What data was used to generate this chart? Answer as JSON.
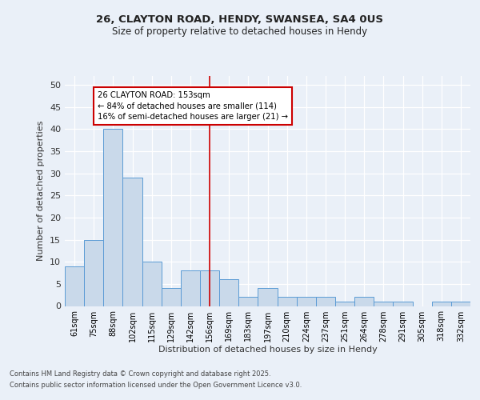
{
  "title1": "26, CLAYTON ROAD, HENDY, SWANSEA, SA4 0US",
  "title2": "Size of property relative to detached houses in Hendy",
  "xlabel": "Distribution of detached houses by size in Hendy",
  "ylabel": "Number of detached properties",
  "categories": [
    "61sqm",
    "75sqm",
    "88sqm",
    "102sqm",
    "115sqm",
    "129sqm",
    "142sqm",
    "156sqm",
    "169sqm",
    "183sqm",
    "197sqm",
    "210sqm",
    "224sqm",
    "237sqm",
    "251sqm",
    "264sqm",
    "278sqm",
    "291sqm",
    "305sqm",
    "318sqm",
    "332sqm"
  ],
  "values": [
    9,
    15,
    40,
    29,
    10,
    4,
    8,
    8,
    6,
    2,
    4,
    2,
    2,
    2,
    1,
    2,
    1,
    1,
    0,
    1,
    1
  ],
  "bar_color": "#c9d9ea",
  "bar_edge_color": "#5b9bd5",
  "vline_color": "#cc0000",
  "vline_x": 7.0,
  "annotation_title": "26 CLAYTON ROAD: 153sqm",
  "annotation_line1": "← 84% of detached houses are smaller (114)",
  "annotation_line2": "16% of semi-detached houses are larger (21) →",
  "annotation_box_color": "#ffffff",
  "annotation_box_edge": "#cc0000",
  "ylim": [
    0,
    52
  ],
  "yticks": [
    0,
    5,
    10,
    15,
    20,
    25,
    30,
    35,
    40,
    45,
    50
  ],
  "footer1": "Contains HM Land Registry data © Crown copyright and database right 2025.",
  "footer2": "Contains public sector information licensed under the Open Government Licence v3.0.",
  "bg_color": "#eaf0f8",
  "plot_bg_color": "#eaf0f8",
  "grid_color": "#ffffff",
  "title1_fontsize": 9.5,
  "title2_fontsize": 8.5
}
